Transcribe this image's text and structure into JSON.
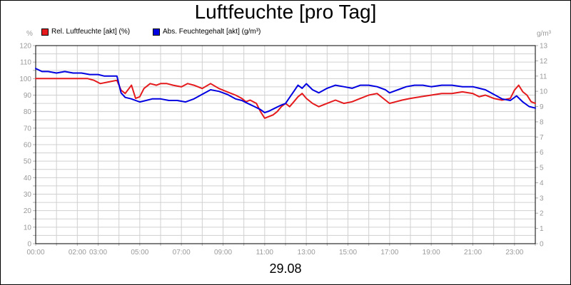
{
  "chart_data": {
    "type": "line",
    "title": "Luftfeuchte [pro Tag]",
    "date_label": "29.08",
    "left_unit": "%",
    "right_unit": "g/m³",
    "x_ticks": [
      "00:00",
      "02:00",
      "03:00",
      "05:00",
      "07:00",
      "09:00",
      "11:00",
      "13:00",
      "15:00",
      "17:00",
      "19:00",
      "21:00",
      "23:00"
    ],
    "x_tick_hours": [
      0,
      2,
      3,
      5,
      7,
      9,
      11,
      13,
      15,
      17,
      19,
      21,
      23
    ],
    "xlim": [
      0,
      24
    ],
    "y_left_lim": [
      0,
      120
    ],
    "y_left_ticks": [
      0,
      5,
      10,
      15,
      20,
      25,
      30,
      35,
      40,
      45,
      50,
      55,
      60,
      65,
      70,
      75,
      80,
      85,
      90,
      95,
      100,
      105,
      110,
      115,
      120
    ],
    "y_right_lim": [
      0,
      13
    ],
    "y_right_ticks": [
      0,
      1,
      2,
      3,
      4,
      5,
      6,
      7,
      8,
      9,
      10,
      11,
      12,
      13
    ],
    "grid": true,
    "legend_position": "top-left",
    "series": [
      {
        "name": "Rel. Luftfeuchte [akt] (%)",
        "color": "#e41a1c",
        "axis": "left",
        "x": [
          0,
          0.5,
          1,
          1.5,
          2,
          2.5,
          2.8,
          3.1,
          3.5,
          3.9,
          4.1,
          4.3,
          4.6,
          4.8,
          5.0,
          5.2,
          5.5,
          5.8,
          6.0,
          6.3,
          6.6,
          7.0,
          7.3,
          7.6,
          8.0,
          8.4,
          8.8,
          9.2,
          9.6,
          9.9,
          10.1,
          10.3,
          10.6,
          10.8,
          11.0,
          11.2,
          11.4,
          11.6,
          11.8,
          12.0,
          12.2,
          12.4,
          12.6,
          12.8,
          13.0,
          13.3,
          13.6,
          14.0,
          14.4,
          14.8,
          15.2,
          15.6,
          16.0,
          16.4,
          16.8,
          17.0,
          17.3,
          17.6,
          18.0,
          18.5,
          19.0,
          19.5,
          20.0,
          20.5,
          21.0,
          21.3,
          21.6,
          22.0,
          22.4,
          22.8,
          23.0,
          23.2,
          23.4,
          23.6,
          23.8,
          24.0
        ],
        "values": [
          100,
          100,
          100,
          100,
          100,
          100,
          99,
          97,
          98,
          99,
          93,
          91,
          96,
          88,
          89,
          94,
          97,
          96,
          97,
          97,
          96,
          95,
          97,
          96,
          94,
          97,
          94,
          92,
          90,
          88,
          86,
          87,
          85,
          80,
          76,
          77,
          78,
          80,
          83,
          85,
          83,
          86,
          89,
          91,
          88,
          85,
          83,
          85,
          87,
          85,
          86,
          88,
          90,
          91,
          87,
          85,
          86,
          87,
          88,
          89,
          90,
          91,
          91,
          92,
          91,
          89,
          90,
          88,
          87,
          88,
          93,
          96,
          92,
          90,
          86,
          85
        ]
      },
      {
        "name": "Abs. Feuchtegehalt [akt] (g/m³)",
        "color": "#0000e0",
        "axis": "right",
        "x": [
          0,
          0.3,
          0.6,
          1,
          1.4,
          1.8,
          2.2,
          2.6,
          3.0,
          3.3,
          3.6,
          3.9,
          4.1,
          4.3,
          4.6,
          4.8,
          5.0,
          5.3,
          5.6,
          6.0,
          6.4,
          6.8,
          7.2,
          7.6,
          8.0,
          8.4,
          8.8,
          9.2,
          9.6,
          9.9,
          10.2,
          10.5,
          10.8,
          11.0,
          11.2,
          11.5,
          11.8,
          12.0,
          12.2,
          12.4,
          12.6,
          12.8,
          13.0,
          13.3,
          13.6,
          14.0,
          14.4,
          14.8,
          15.2,
          15.6,
          16.0,
          16.4,
          16.8,
          17.0,
          17.4,
          17.8,
          18.2,
          18.6,
          19.0,
          19.5,
          20.0,
          20.5,
          21.0,
          21.3,
          21.6,
          22.0,
          22.4,
          22.8,
          23.1,
          23.4,
          23.7,
          24.0
        ],
        "values": [
          11.5,
          11.3,
          11.3,
          11.2,
          11.3,
          11.2,
          11.2,
          11.1,
          11.1,
          11.0,
          11.0,
          11.0,
          9.9,
          9.6,
          9.5,
          9.4,
          9.3,
          9.4,
          9.5,
          9.5,
          9.4,
          9.4,
          9.3,
          9.5,
          9.8,
          10.1,
          10.0,
          9.8,
          9.5,
          9.4,
          9.2,
          9.0,
          8.8,
          8.6,
          8.7,
          8.9,
          9.1,
          9.2,
          9.6,
          10.0,
          10.4,
          10.2,
          10.5,
          10.1,
          9.9,
          10.2,
          10.4,
          10.3,
          10.2,
          10.4,
          10.4,
          10.3,
          10.1,
          9.9,
          10.1,
          10.3,
          10.4,
          10.4,
          10.3,
          10.4,
          10.4,
          10.3,
          10.3,
          10.2,
          10.1,
          9.8,
          9.5,
          9.4,
          9.7,
          9.3,
          9.0,
          8.9
        ]
      }
    ]
  }
}
